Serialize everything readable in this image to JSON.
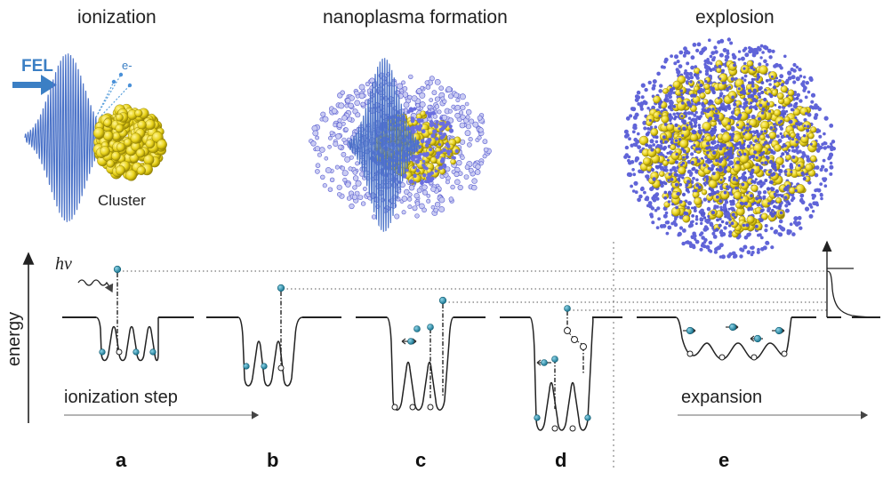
{
  "panel_titles": {
    "ionization": "ionization",
    "nanoplasma": "nanoplasma formation",
    "explosion": "explosion"
  },
  "illustration_labels": {
    "fel": "FEL",
    "electron": "e-",
    "cluster": "Cluster"
  },
  "axis": {
    "energy": "energy",
    "photon": "hν",
    "ionization_step": "ionization step",
    "expansion": "expansion"
  },
  "step_labels": [
    "a",
    "b",
    "c",
    "d",
    "e"
  ],
  "colors": {
    "fel_arrow": "#3b7fc4",
    "pulse": "#4a72c8",
    "cluster_gold": "#e8d21a",
    "ion_blue": "#5b5fd0",
    "electron_teal": "#1f8fb0"
  }
}
